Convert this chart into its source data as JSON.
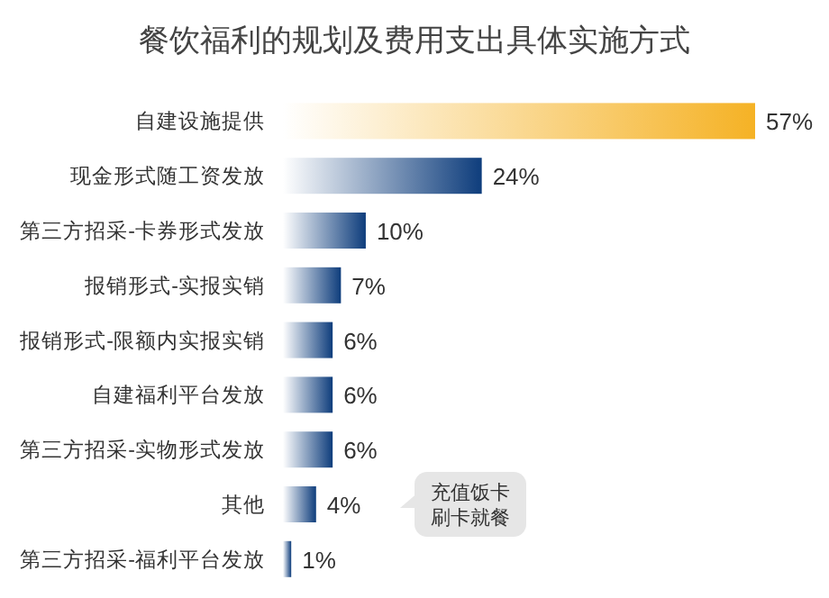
{
  "chart_data": {
    "type": "bar",
    "orientation": "horizontal",
    "title": "餐饮福利的规划及费用支出具体实施方式",
    "categories": [
      "自建设施提供",
      "现金形式随工资发放",
      "第三方招采-卡券形式发放",
      "报销形式-实报实销",
      "报销形式-限额内实报实销",
      "自建福利平台发放",
      "第三方招采-实物形式发放",
      "其他",
      "第三方招采-福利平台发放"
    ],
    "values": [
      57,
      24,
      10,
      7,
      6,
      6,
      6,
      4,
      1
    ],
    "value_labels": [
      "57%",
      "24%",
      "10%",
      "7%",
      "6%",
      "6%",
      "6%",
      "4%",
      "1%"
    ],
    "colors": [
      "#f5b225",
      "#0e3d7c",
      "#0e3d7c",
      "#0e3d7c",
      "#0e3d7c",
      "#0e3d7c",
      "#0e3d7c",
      "#0e3d7c",
      "#0e3d7c"
    ],
    "annotations": [
      "充值饭卡刷卡就餐"
    ]
  }
}
